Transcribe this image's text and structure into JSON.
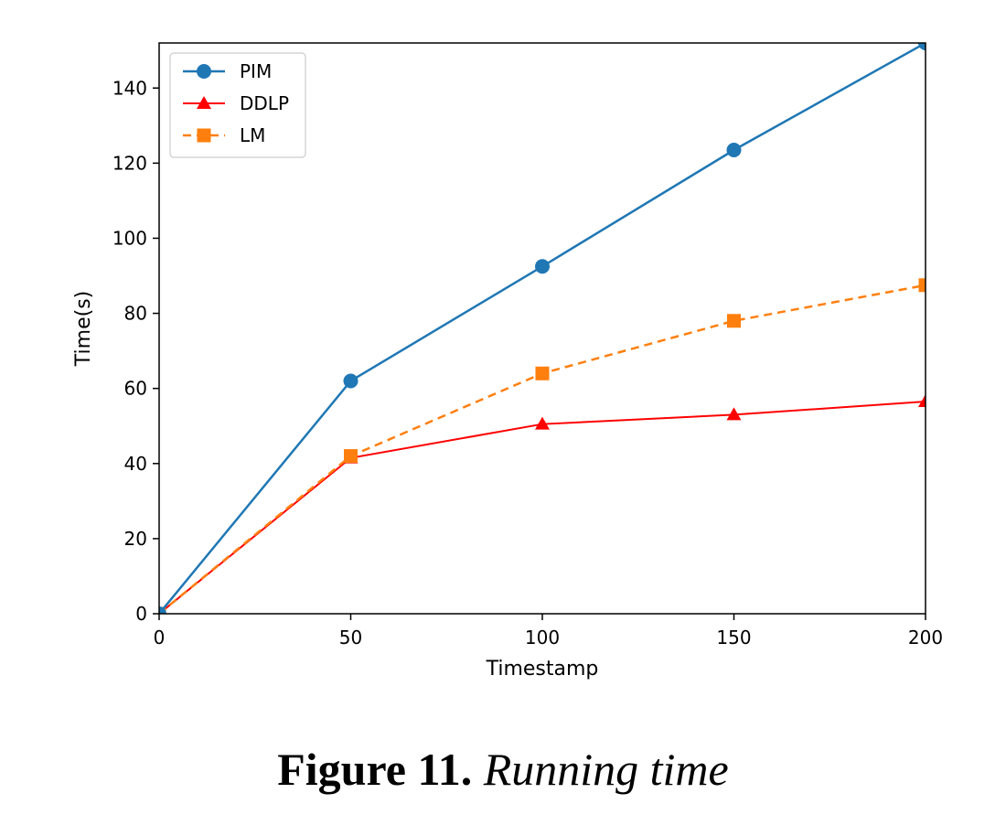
{
  "chart_data": {
    "type": "line",
    "title": "",
    "xlabel": "Timestamp",
    "ylabel": "Time(s)",
    "xlim": [
      0,
      200
    ],
    "ylim": [
      0,
      152
    ],
    "xticks": [
      0,
      50,
      100,
      150,
      200
    ],
    "yticks": [
      0,
      20,
      40,
      60,
      80,
      100,
      120,
      140
    ],
    "grid": false,
    "legend_position": "top-left",
    "x": [
      0,
      50,
      100,
      150,
      200
    ],
    "series": [
      {
        "name": "PIM",
        "values": [
          0,
          62,
          92.5,
          123.5,
          152
        ],
        "color": "#1f77b4",
        "marker": "circle",
        "line_style": "solid"
      },
      {
        "name": "DDLP",
        "values": [
          0,
          41.5,
          50.5,
          53,
          56.5
        ],
        "color": "#ff0000",
        "marker": "triangle",
        "line_style": "solid"
      },
      {
        "name": "LM",
        "values": [
          0,
          42,
          64,
          78,
          87.5
        ],
        "color": "#ff7f0e",
        "marker": "square",
        "line_style": "dashed"
      }
    ]
  },
  "caption": {
    "label": "Figure 11.",
    "text": "Running time"
  }
}
